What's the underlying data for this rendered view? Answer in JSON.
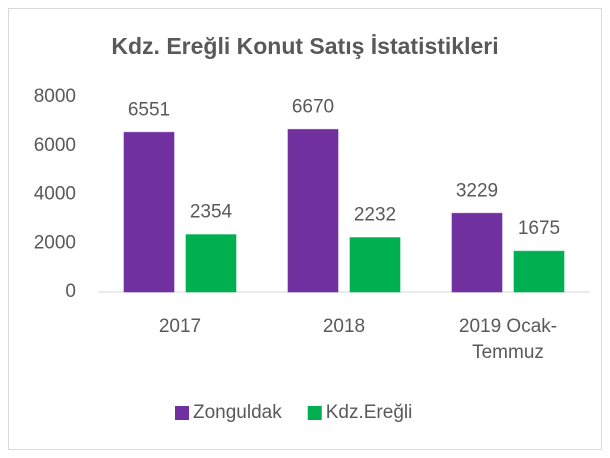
{
  "chart_data": {
    "type": "bar",
    "title": "Kdz. Ereğli Konut Satış İstatistikleri",
    "categories": [
      "2017",
      "2018",
      "2019 Ocak-Temmuz"
    ],
    "series": [
      {
        "name": "Zonguldak",
        "color": "#7030a0",
        "values": [
          6551,
          6670,
          3229
        ]
      },
      {
        "name": "Kdz.Ereğli",
        "color": "#00b050",
        "values": [
          2354,
          2232,
          1675
        ]
      }
    ],
    "ylim": [
      0,
      8000
    ],
    "yticks": [
      0,
      2000,
      4000,
      6000,
      8000
    ],
    "grid": false,
    "legend": "bottom"
  }
}
